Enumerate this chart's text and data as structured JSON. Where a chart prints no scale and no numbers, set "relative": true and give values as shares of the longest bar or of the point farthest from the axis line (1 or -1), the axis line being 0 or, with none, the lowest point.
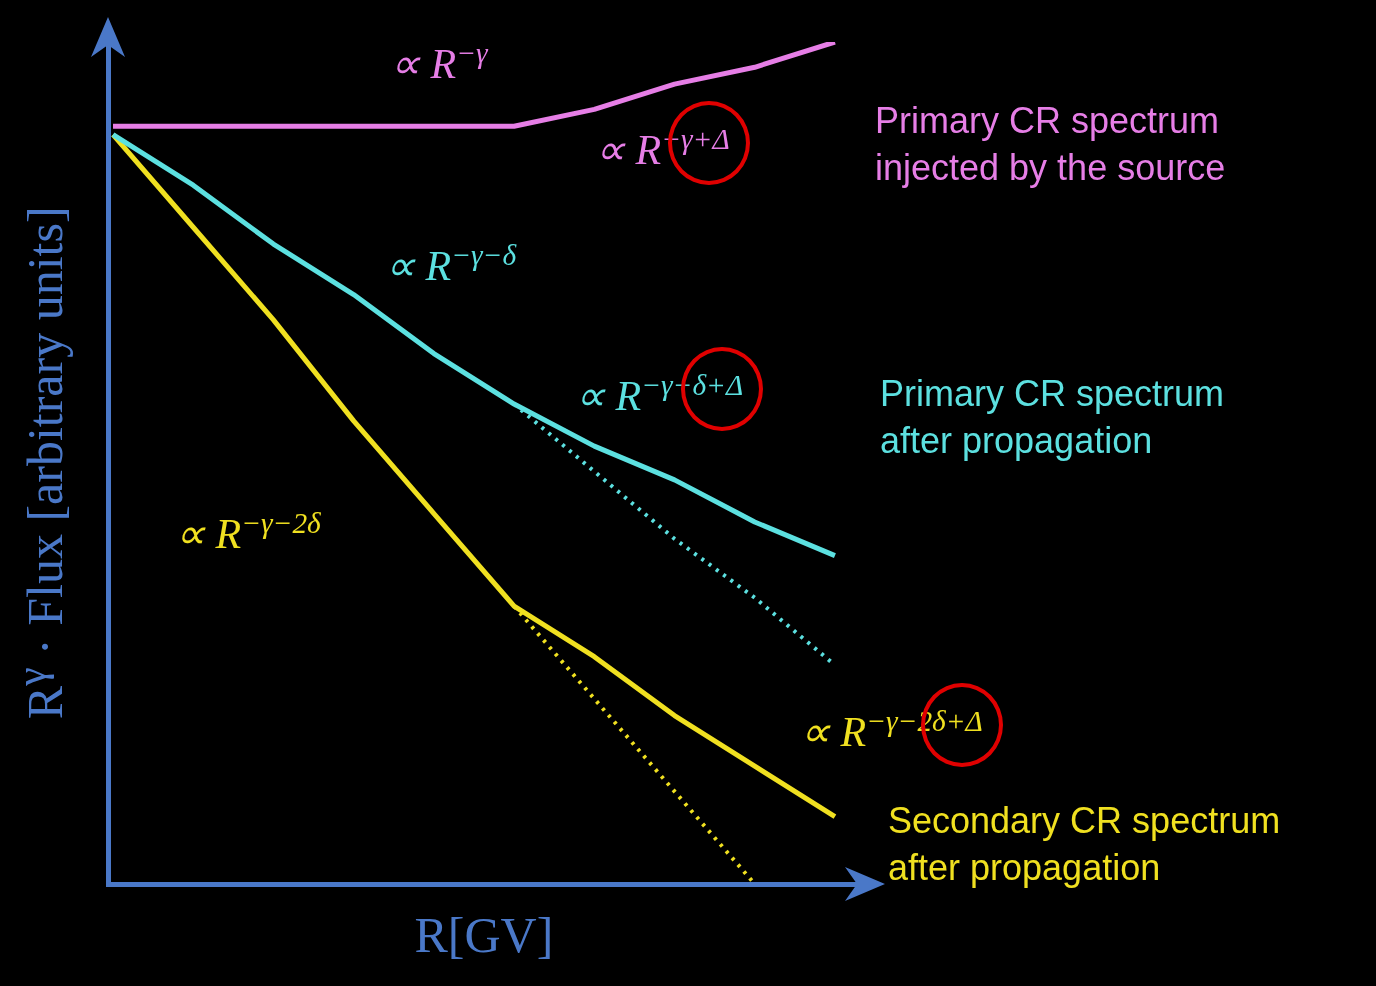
{
  "chart_data": {
    "type": "line",
    "relative": true,
    "legend": "right",
    "marker": "none",
    "line_style": "solid",
    "xlabel": "R[GV]",
    "ylabel": "R$^{γ}$ · Flux [arbitrary units]",
    "categories": [
      null,
      null,
      null,
      null,
      null,
      null,
      null,
      null,
      null,
      null
    ],
    "series": [
      {
        "name": "Primary CR spectrum injected by the source",
        "color": "#e67ee6",
        "values": [
          0.9,
          0.9,
          0.9,
          0.9,
          0.9,
          0.9,
          0.92,
          0.95,
          0.97,
          1.0
        ]
      },
      {
        "name": "Primary CR spectrum after propagation",
        "color": "#5ce0e0",
        "values": [
          0.89,
          0.83,
          0.76,
          0.7,
          0.63,
          0.57,
          0.52,
          0.48,
          0.43,
          0.39
        ]
      },
      {
        "color": "#5ce0e0",
        "line_style": "dotted",
        "values": [
          null,
          null,
          null,
          null,
          null,
          0.57,
          0.49,
          0.41,
          0.34,
          0.26
        ]
      },
      {
        "name": "Secondary CR spectrum after propagation",
        "color": "#f0e020",
        "values": [
          0.89,
          0.78,
          0.67,
          0.55,
          0.44,
          0.33,
          0.27,
          0.2,
          0.14,
          0.08
        ]
      },
      {
        "color": "#f0e020",
        "line_style": "dotted",
        "values": [
          null,
          null,
          null,
          null,
          null,
          0.33,
          0.22,
          0.11,
          0.0,
          null
        ]
      }
    ],
    "annotations": [
      "∝ R$^{−γ}$",
      "∝ R$^{−γ+Δ}$",
      "∝ R$^{−γ−δ}$",
      "∝ R$^{−γ−δ+Δ}$",
      "∝ R$^{−γ−2δ}$",
      "∝ R$^{−γ−2δ+Δ}$"
    ]
  }
}
